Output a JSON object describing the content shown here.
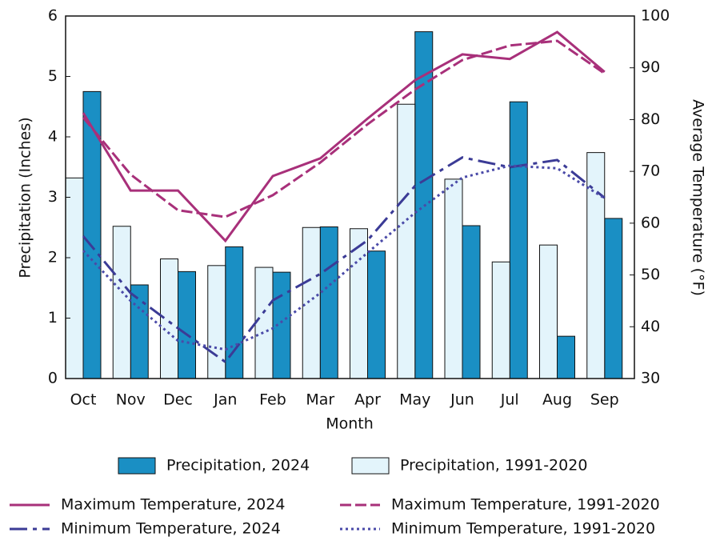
{
  "chart_data": {
    "type": "bar_line",
    "categories": [
      "Oct",
      "Nov",
      "Dec",
      "Jan",
      "Feb",
      "Mar",
      "Apr",
      "May",
      "Jun",
      "Jul",
      "Aug",
      "Sep"
    ],
    "xlabel": "Month",
    "ylabel": "Precipitation (Inches)",
    "y2label": "Average Temperature (°F)",
    "ylim": [
      0,
      6
    ],
    "yticks": [
      0,
      1,
      2,
      3,
      4,
      5,
      6
    ],
    "y2lim": [
      30,
      100
    ],
    "y2ticks": [
      30,
      40,
      50,
      60,
      70,
      80,
      90,
      100
    ],
    "series": [
      {
        "name": "Precipitation, 2024",
        "kind": "bar",
        "color": "#1a8fc4",
        "values": [
          4.75,
          1.55,
          1.77,
          2.18,
          1.76,
          2.51,
          2.11,
          5.74,
          2.53,
          4.58,
          0.7,
          2.65
        ]
      },
      {
        "name": "Precipitation, 1991-2020",
        "kind": "bar",
        "color": "#e3f4fb",
        "values": [
          3.32,
          2.52,
          1.98,
          1.87,
          1.84,
          2.5,
          2.48,
          4.54,
          3.3,
          1.93,
          2.21,
          3.74
        ]
      },
      {
        "name": "Maximum Temperature, 2024",
        "kind": "line",
        "axis": "y2",
        "dash": "solid",
        "color": "#a8307a",
        "values": [
          81.3,
          66.3,
          66.3,
          56.6,
          69.1,
          72.5,
          80.2,
          87.6,
          92.6,
          91.7,
          96.9,
          89.2
        ]
      },
      {
        "name": "Maximum Temperature, 1991-2020",
        "kind": "line",
        "axis": "y2",
        "dash": "dashed",
        "color": "#a8307a",
        "values": [
          80.4,
          69.4,
          62.5,
          61.2,
          65.4,
          71.7,
          79.1,
          85.8,
          91.5,
          94.3,
          95.2,
          88.9
        ]
      },
      {
        "name": "Minimum Temperature, 2024",
        "kind": "line",
        "axis": "y2",
        "dash": "dashdot",
        "color": "#3b3b96",
        "values": [
          57.5,
          46.5,
          39.7,
          33.2,
          45.1,
          50.2,
          56.7,
          67.2,
          72.7,
          70.8,
          72.2,
          64.9
        ]
      },
      {
        "name": "Minimum Temperature, 1991-2020",
        "kind": "line",
        "axis": "y2",
        "dash": "dotted",
        "color": "#4a4aa8",
        "values": [
          54.7,
          45.0,
          37.3,
          35.6,
          39.7,
          46.5,
          54.3,
          62.0,
          68.8,
          71.1,
          70.6,
          64.8
        ]
      }
    ]
  }
}
